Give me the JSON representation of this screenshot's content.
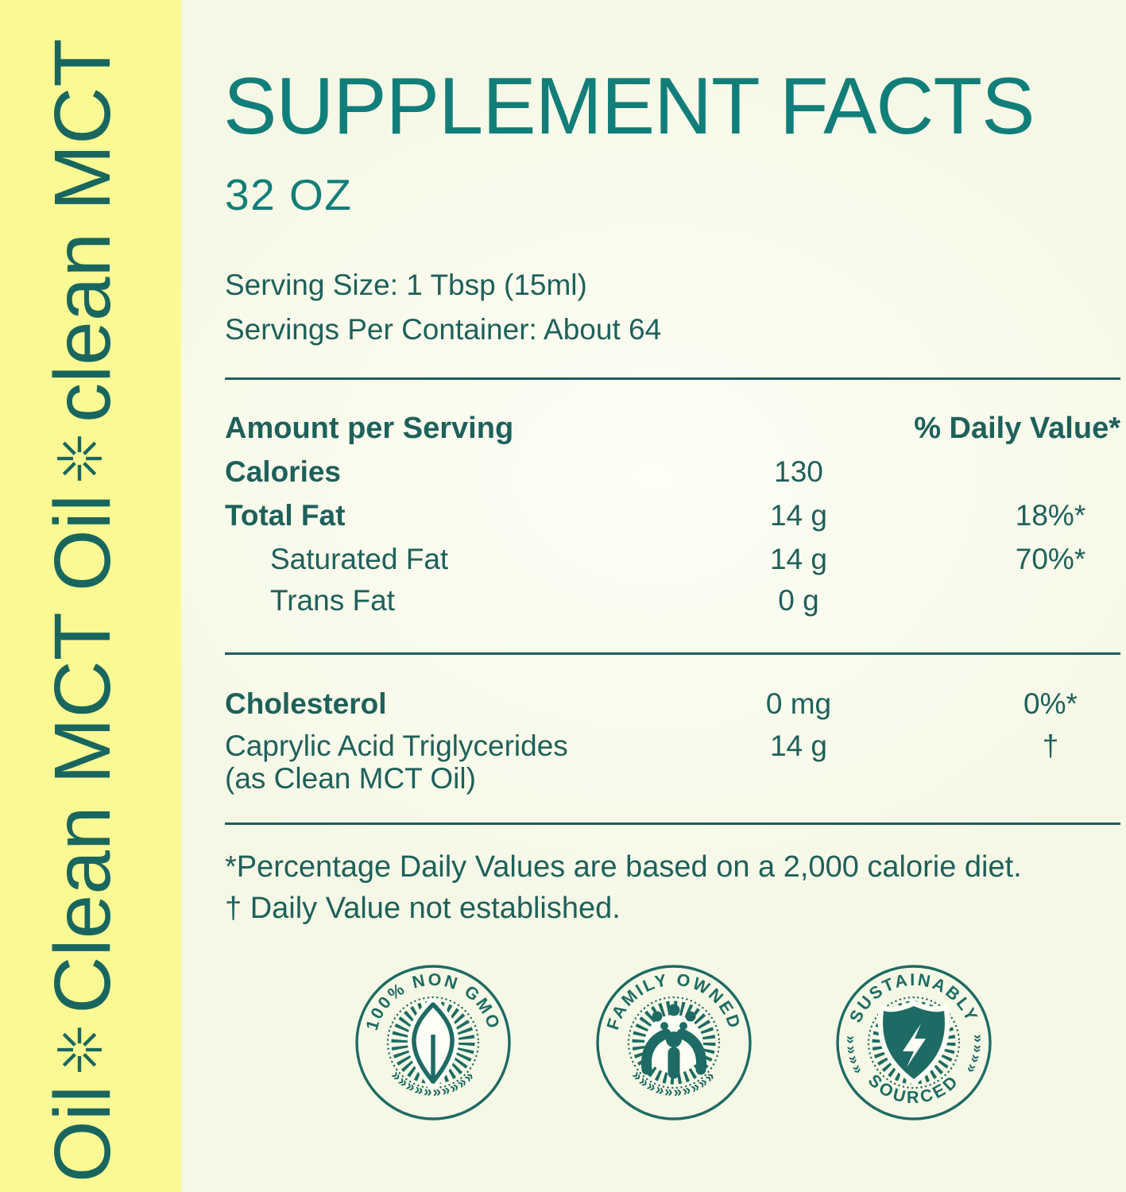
{
  "strip": {
    "segments": [
      "Oil",
      "Clean MCT Oil",
      "clean MCT"
    ],
    "separator_icon": "starburst-icon"
  },
  "header": {
    "title": "SUPPLEMENT FACTS",
    "size": "32 OZ"
  },
  "serving": {
    "serving_size": "Serving Size: 1 Tbsp (15ml)",
    "servings_per_container": "Servings Per Container: About 64"
  },
  "table": {
    "header": {
      "left": "Amount per Serving",
      "right": "% Daily Value*"
    },
    "rows": [
      {
        "label": "Calories",
        "amount": "130",
        "dv": "",
        "bold": true,
        "indent": false
      },
      {
        "label": "Total Fat",
        "amount": "14 g",
        "dv": "18%*",
        "bold": true,
        "indent": false
      },
      {
        "label": "Saturated Fat",
        "amount": "14 g",
        "dv": "70%*",
        "bold": false,
        "indent": true
      },
      {
        "label": "Trans Fat",
        "amount": "0 g",
        "dv": "",
        "bold": false,
        "indent": true
      }
    ],
    "rows2": [
      {
        "label": "Cholesterol",
        "amount": "0 mg",
        "dv": "0%*",
        "bold": true,
        "indent": false
      },
      {
        "label": "Caprylic Acid Triglycerides",
        "sublabel": "(as Clean MCT Oil)",
        "amount": "14 g",
        "dv": "†",
        "bold": false,
        "indent": false
      }
    ]
  },
  "footnotes": [
    "*Percentage Daily Values are based on a 2,000 calorie diet.",
    "† Daily Value not established."
  ],
  "badges": [
    {
      "name": "non-gmo-badge",
      "top_text": "100% NON GMO",
      "bottom_text": "",
      "icon": "leaf-icon"
    },
    {
      "name": "family-owned-badge",
      "top_text": "FAMILY OWNED",
      "bottom_text": "",
      "icon": "family-icon"
    },
    {
      "name": "sustainably-sourced-badge",
      "top_text": "SUSTAINABLY",
      "bottom_text": "SOURCED",
      "icon": "lightning-bolt-icon"
    }
  ],
  "colors": {
    "strip_bg": "#fbf993",
    "page_bg": "#f6f8e6",
    "page_bg_light": "#fdfef5",
    "title_teal": "#117e79",
    "text_teal": "#1e605b",
    "strip_teal": "#19665f",
    "badge_teal": "#1d6b64",
    "rule": "#1e5f5b"
  }
}
